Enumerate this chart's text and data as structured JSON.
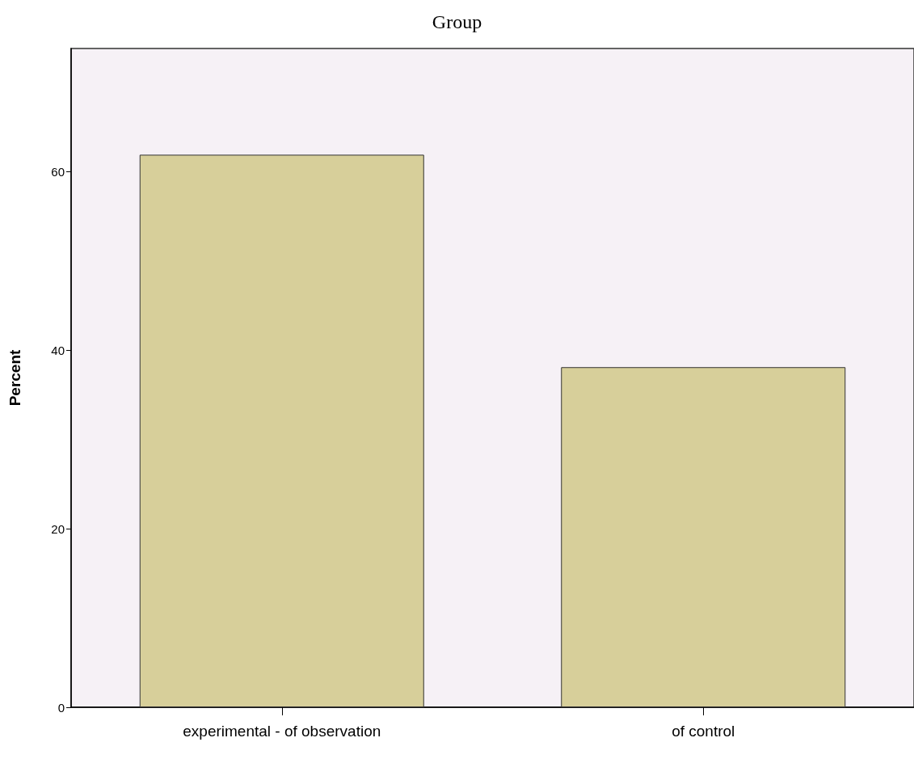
{
  "chart_data": {
    "type": "bar",
    "title": "Group",
    "ylabel": "Percent",
    "categories": [
      "experimental - of observation",
      "of control"
    ],
    "values": [
      61.9,
      38.1
    ],
    "color": "#d7cf9a",
    "ylim": [
      0,
      73.8
    ],
    "yticks": [
      0,
      20,
      40,
      60
    ],
    "grid": false
  }
}
